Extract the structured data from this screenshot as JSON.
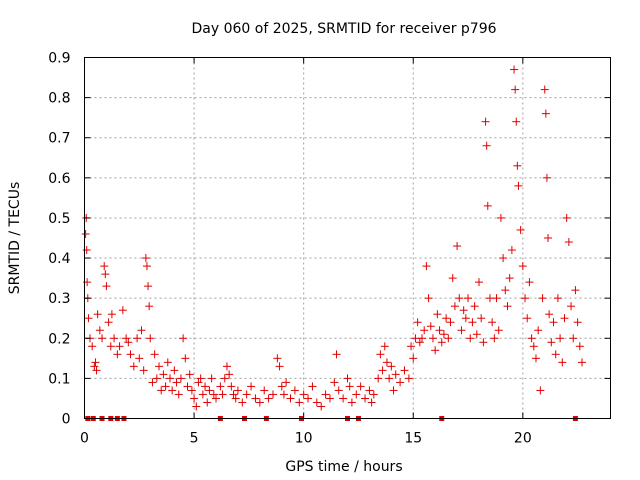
{
  "chart_data": {
    "type": "scatter",
    "title": "Day 060 of 2025, SRMTID for receiver p796",
    "xlabel": "GPS time / hours",
    "ylabel": "SRMTID / TECUs",
    "xlim": [
      0,
      24
    ],
    "ylim": [
      0,
      0.9
    ],
    "xticks": [
      0,
      5,
      10,
      15,
      20
    ],
    "xtick_labels": [
      "0",
      "5",
      "10",
      "15",
      "20"
    ],
    "yticks": [
      0,
      0.1,
      0.2,
      0.3,
      0.4,
      0.5,
      0.6,
      0.7,
      0.8,
      0.9
    ],
    "ytick_labels": [
      "0",
      "0.1",
      "0.2",
      "0.3",
      "0.4",
      "0.5",
      "0.6",
      "0.7",
      "0.8",
      "0.9"
    ],
    "grid": true,
    "marker": "plus",
    "color": "#e00000",
    "series": [
      {
        "name": "SRMTID",
        "points": [
          [
            0.05,
            0.46
          ],
          [
            0.08,
            0.5
          ],
          [
            0.1,
            0.42
          ],
          [
            0.12,
            0.34
          ],
          [
            0.15,
            0.3
          ],
          [
            0.18,
            0.25
          ],
          [
            0.25,
            0.2
          ],
          [
            0.35,
            0.18
          ],
          [
            0.45,
            0.13
          ],
          [
            0.5,
            0.14
          ],
          [
            0.55,
            0.12
          ],
          [
            0.6,
            0.26
          ],
          [
            0.7,
            0.22
          ],
          [
            0.8,
            0.2
          ],
          [
            0.9,
            0.38
          ],
          [
            0.95,
            0.36
          ],
          [
            1.0,
            0.33
          ],
          [
            1.1,
            0.24
          ],
          [
            1.2,
            0.18
          ],
          [
            1.25,
            0.26
          ],
          [
            1.35,
            0.2
          ],
          [
            1.5,
            0.16
          ],
          [
            1.6,
            0.18
          ],
          [
            1.75,
            0.27
          ],
          [
            1.9,
            0.2
          ],
          [
            2.0,
            0.19
          ],
          [
            2.1,
            0.16
          ],
          [
            2.25,
            0.13
          ],
          [
            2.4,
            0.2
          ],
          [
            2.5,
            0.15
          ],
          [
            2.6,
            0.22
          ],
          [
            2.7,
            0.12
          ],
          [
            2.8,
            0.4
          ],
          [
            2.85,
            0.38
          ],
          [
            2.9,
            0.33
          ],
          [
            2.95,
            0.28
          ],
          [
            3.0,
            0.2
          ],
          [
            3.1,
            0.09
          ],
          [
            3.2,
            0.16
          ],
          [
            3.3,
            0.1
          ],
          [
            3.4,
            0.13
          ],
          [
            3.5,
            0.07
          ],
          [
            3.6,
            0.11
          ],
          [
            3.7,
            0.08
          ],
          [
            3.8,
            0.14
          ],
          [
            3.9,
            0.1
          ],
          [
            4.0,
            0.07
          ],
          [
            4.1,
            0.12
          ],
          [
            4.2,
            0.09
          ],
          [
            4.3,
            0.06
          ],
          [
            4.4,
            0.1
          ],
          [
            4.5,
            0.2
          ],
          [
            4.6,
            0.15
          ],
          [
            4.7,
            0.08
          ],
          [
            4.8,
            0.11
          ],
          [
            4.9,
            0.07
          ],
          [
            5.0,
            0.05
          ],
          [
            5.1,
            0.03
          ],
          [
            5.2,
            0.09
          ],
          [
            5.3,
            0.1
          ],
          [
            5.4,
            0.06
          ],
          [
            5.5,
            0.08
          ],
          [
            5.6,
            0.04
          ],
          [
            5.7,
            0.07
          ],
          [
            5.8,
            0.1
          ],
          [
            5.9,
            0.06
          ],
          [
            6.0,
            0.05
          ],
          [
            6.2,
            0.08
          ],
          [
            6.3,
            0.06
          ],
          [
            6.4,
            0.1
          ],
          [
            6.5,
            0.13
          ],
          [
            6.6,
            0.11
          ],
          [
            6.7,
            0.08
          ],
          [
            6.8,
            0.06
          ],
          [
            6.9,
            0.05
          ],
          [
            7.0,
            0.07
          ],
          [
            7.2,
            0.04
          ],
          [
            7.4,
            0.06
          ],
          [
            7.6,
            0.08
          ],
          [
            7.8,
            0.05
          ],
          [
            8.0,
            0.04
          ],
          [
            8.2,
            0.07
          ],
          [
            8.4,
            0.05
          ],
          [
            8.6,
            0.06
          ],
          [
            8.8,
            0.15
          ],
          [
            8.9,
            0.13
          ],
          [
            9.0,
            0.08
          ],
          [
            9.1,
            0.06
          ],
          [
            9.2,
            0.09
          ],
          [
            9.4,
            0.05
          ],
          [
            9.6,
            0.07
          ],
          [
            9.8,
            0.04
          ],
          [
            10.0,
            0.06
          ],
          [
            10.2,
            0.05
          ],
          [
            10.4,
            0.08
          ],
          [
            10.6,
            0.04
          ],
          [
            10.8,
            0.03
          ],
          [
            11.0,
            0.06
          ],
          [
            11.2,
            0.05
          ],
          [
            11.4,
            0.09
          ],
          [
            11.5,
            0.16
          ],
          [
            11.6,
            0.07
          ],
          [
            11.8,
            0.05
          ],
          [
            12.0,
            0.1
          ],
          [
            12.1,
            0.08
          ],
          [
            12.2,
            0.04
          ],
          [
            12.4,
            0.06
          ],
          [
            12.6,
            0.08
          ],
          [
            12.8,
            0.05
          ],
          [
            13.0,
            0.07
          ],
          [
            13.1,
            0.04
          ],
          [
            13.2,
            0.06
          ],
          [
            13.4,
            0.1
          ],
          [
            13.5,
            0.16
          ],
          [
            13.6,
            0.12
          ],
          [
            13.7,
            0.18
          ],
          [
            13.8,
            0.14
          ],
          [
            13.9,
            0.1
          ],
          [
            14.0,
            0.13
          ],
          [
            14.1,
            0.07
          ],
          [
            14.2,
            0.11
          ],
          [
            14.4,
            0.09
          ],
          [
            14.6,
            0.12
          ],
          [
            14.8,
            0.1
          ],
          [
            14.9,
            0.18
          ],
          [
            15.0,
            0.15
          ],
          [
            15.1,
            0.2
          ],
          [
            15.2,
            0.24
          ],
          [
            15.3,
            0.19
          ],
          [
            15.4,
            0.2
          ],
          [
            15.5,
            0.22
          ],
          [
            15.6,
            0.38
          ],
          [
            15.7,
            0.3
          ],
          [
            15.8,
            0.23
          ],
          [
            15.9,
            0.2
          ],
          [
            16.0,
            0.17
          ],
          [
            16.1,
            0.26
          ],
          [
            16.2,
            0.22
          ],
          [
            16.3,
            0.19
          ],
          [
            16.4,
            0.21
          ],
          [
            16.5,
            0.25
          ],
          [
            16.6,
            0.2
          ],
          [
            16.7,
            0.24
          ],
          [
            16.8,
            0.35
          ],
          [
            16.9,
            0.28
          ],
          [
            17.0,
            0.43
          ],
          [
            17.1,
            0.3
          ],
          [
            17.2,
            0.22
          ],
          [
            17.3,
            0.27
          ],
          [
            17.4,
            0.25
          ],
          [
            17.5,
            0.3
          ],
          [
            17.6,
            0.2
          ],
          [
            17.7,
            0.24
          ],
          [
            17.8,
            0.28
          ],
          [
            17.9,
            0.21
          ],
          [
            18.0,
            0.34
          ],
          [
            18.1,
            0.25
          ],
          [
            18.2,
            0.19
          ],
          [
            18.3,
            0.74
          ],
          [
            18.35,
            0.68
          ],
          [
            18.4,
            0.53
          ],
          [
            18.5,
            0.3
          ],
          [
            18.6,
            0.24
          ],
          [
            18.7,
            0.2
          ],
          [
            18.8,
            0.3
          ],
          [
            18.9,
            0.22
          ],
          [
            19.0,
            0.5
          ],
          [
            19.1,
            0.4
          ],
          [
            19.2,
            0.32
          ],
          [
            19.3,
            0.28
          ],
          [
            19.4,
            0.35
          ],
          [
            19.5,
            0.42
          ],
          [
            19.6,
            0.87
          ],
          [
            19.65,
            0.82
          ],
          [
            19.7,
            0.74
          ],
          [
            19.75,
            0.63
          ],
          [
            19.8,
            0.58
          ],
          [
            19.9,
            0.47
          ],
          [
            20.0,
            0.38
          ],
          [
            20.1,
            0.3
          ],
          [
            20.2,
            0.25
          ],
          [
            20.3,
            0.34
          ],
          [
            20.4,
            0.2
          ],
          [
            20.5,
            0.18
          ],
          [
            20.6,
            0.15
          ],
          [
            20.7,
            0.22
          ],
          [
            20.8,
            0.07
          ],
          [
            20.9,
            0.3
          ],
          [
            21.0,
            0.82
          ],
          [
            21.05,
            0.76
          ],
          [
            21.1,
            0.6
          ],
          [
            21.15,
            0.45
          ],
          [
            21.2,
            0.26
          ],
          [
            21.3,
            0.19
          ],
          [
            21.4,
            0.24
          ],
          [
            21.5,
            0.16
          ],
          [
            21.6,
            0.3
          ],
          [
            21.7,
            0.2
          ],
          [
            21.8,
            0.14
          ],
          [
            21.9,
            0.25
          ],
          [
            22.0,
            0.5
          ],
          [
            22.1,
            0.44
          ],
          [
            22.2,
            0.28
          ],
          [
            22.3,
            0.2
          ],
          [
            22.4,
            0.32
          ],
          [
            22.5,
            0.24
          ],
          [
            22.6,
            0.18
          ],
          [
            22.7,
            0.14
          ]
        ]
      }
    ],
    "gap_markers_x": [
      0.15,
      0.4,
      0.8,
      1.2,
      1.5,
      1.8,
      6.2,
      7.3,
      8.3,
      9.9,
      12.0,
      12.5,
      16.3,
      22.4
    ]
  }
}
